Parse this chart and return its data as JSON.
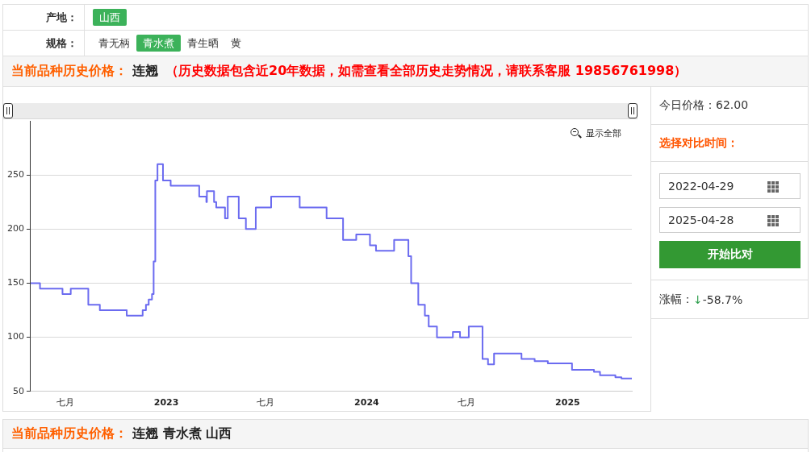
{
  "chart_data": {
    "type": "step",
    "x": [
      "2022-04-29",
      "2022-05-16",
      "2022-06-26",
      "2022-07-11",
      "2022-08-12",
      "2022-09-02",
      "2022-10-21",
      "2022-11-19",
      "2022-11-25",
      "2022-11-30",
      "2022-12-06",
      "2022-12-09",
      "2022-12-12",
      "2022-12-16",
      "2022-12-26",
      "2023-01-09",
      "2023-03-02",
      "2023-03-15",
      "2023-03-16",
      "2023-03-29",
      "2023-04-02",
      "2023-04-18",
      "2023-04-23",
      "2023-05-13",
      "2023-05-26",
      "2023-06-13",
      "2023-07-11",
      "2023-09-01",
      "2023-10-20",
      "2023-11-19",
      "2023-12-13",
      "2024-01-07",
      "2024-01-18",
      "2024-02-20",
      "2024-03-17",
      "2024-03-22",
      "2024-04-04",
      "2024-04-16",
      "2024-04-23",
      "2024-05-08",
      "2024-06-06",
      "2024-06-19",
      "2024-07-05",
      "2024-07-30",
      "2024-08-09",
      "2024-08-20",
      "2024-10-09",
      "2024-11-02",
      "2024-11-26",
      "2025-01-09",
      "2025-02-18",
      "2025-03-01",
      "2025-03-29",
      "2025-04-09",
      "2025-04-28"
    ],
    "values": [
      150,
      145,
      140,
      145,
      130,
      125,
      120,
      125,
      130,
      135,
      140,
      170,
      245,
      260,
      245,
      240,
      230,
      225,
      235,
      225,
      220,
      210,
      230,
      210,
      200,
      220,
      230,
      220,
      210,
      190,
      195,
      185,
      180,
      190,
      175,
      150,
      130,
      120,
      110,
      100,
      105,
      100,
      110,
      80,
      75,
      85,
      80,
      78,
      76,
      70,
      68,
      65,
      63,
      62,
      62
    ],
    "color": "#6b6bf0",
    "xlim": [
      "2022-04-29",
      "2025-04-28"
    ],
    "xticks": [
      {
        "value": "2022-07-01",
        "label": "七月"
      },
      {
        "value": "2023-01-01",
        "label": "2023"
      },
      {
        "value": "2023-07-01",
        "label": "七月"
      },
      {
        "value": "2024-01-01",
        "label": "2024"
      },
      {
        "value": "2024-07-01",
        "label": "七月"
      },
      {
        "value": "2025-01-01",
        "label": "2025"
      }
    ],
    "ylim": [
      50,
      300
    ],
    "yticks": [
      50,
      100,
      150,
      200,
      250
    ],
    "grid": "y",
    "annotations": [
      "产地：",
      "山西",
      "规格：",
      "青无柄",
      "青水煮",
      "青生晒",
      "黄",
      "当前品种历史价格：",
      "连翘",
      "（历史数据包含近20年数据，如需查看全部历史走势情况，请联系客服 19856761998）",
      "显示全部",
      "今日价格：62.00",
      "选择对比时间：",
      "2022-04-29",
      "2025-04-28",
      "开始比对",
      "涨幅：",
      "↓",
      "-58.7%",
      "当前品种历史价格：",
      "连翘 青水煮 山西"
    ]
  }
}
